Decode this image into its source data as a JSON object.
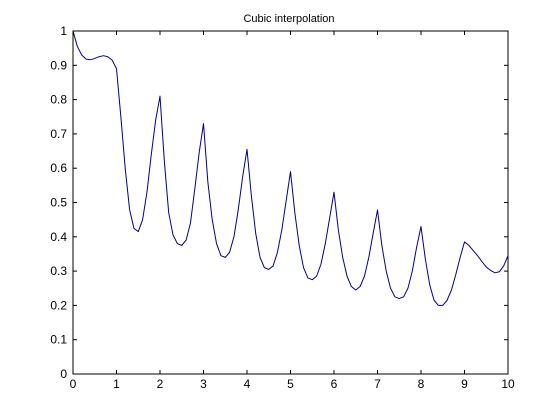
{
  "chart_data": {
    "type": "line",
    "title": "Cubic interpolation",
    "xlabel": "",
    "ylabel": "",
    "xlim": [
      0,
      10
    ],
    "ylim": [
      0,
      1
    ],
    "x_ticks": [
      "0",
      "1",
      "2",
      "3",
      "4",
      "5",
      "6",
      "7",
      "8",
      "9",
      "10"
    ],
    "y_ticks": [
      "0",
      "0.1",
      "0.2",
      "0.3",
      "0.4",
      "0.5",
      "0.6",
      "0.7",
      "0.8",
      "0.9",
      "1"
    ],
    "grid": false,
    "line_color": "#00008f",
    "series": [
      {
        "x": [
          0,
          0.1,
          0.2,
          0.3,
          0.4,
          0.5,
          0.6,
          0.7,
          0.8,
          0.9,
          1.0,
          1.1,
          1.2,
          1.3,
          1.4,
          1.5,
          1.6,
          1.7,
          1.8,
          1.9,
          2.0,
          2.1,
          2.2,
          2.3,
          2.4,
          2.5,
          2.6,
          2.7,
          2.8,
          2.9,
          3.0,
          3.1,
          3.2,
          3.3,
          3.4,
          3.5,
          3.6,
          3.7,
          3.8,
          3.9,
          4.0,
          4.1,
          4.2,
          4.3,
          4.4,
          4.5,
          4.6,
          4.7,
          4.8,
          4.9,
          5.0,
          5.1,
          5.2,
          5.3,
          5.4,
          5.5,
          5.6,
          5.7,
          5.8,
          5.9,
          6.0,
          6.1,
          6.2,
          6.3,
          6.4,
          6.5,
          6.6,
          6.7,
          6.8,
          6.9,
          7.0,
          7.1,
          7.2,
          7.3,
          7.4,
          7.5,
          7.6,
          7.7,
          7.8,
          7.9,
          8.0,
          8.1,
          8.2,
          8.3,
          8.4,
          8.5,
          8.6,
          8.7,
          8.8,
          8.9,
          9.0,
          9.1,
          9.2,
          9.3,
          9.4,
          9.5,
          9.6,
          9.7,
          9.8,
          9.9,
          10.0
        ],
        "y": [
          1.0,
          0.955,
          0.93,
          0.918,
          0.916,
          0.92,
          0.925,
          0.928,
          0.925,
          0.915,
          0.89,
          0.75,
          0.6,
          0.48,
          0.425,
          0.415,
          0.45,
          0.53,
          0.64,
          0.74,
          0.81,
          0.62,
          0.47,
          0.405,
          0.38,
          0.375,
          0.39,
          0.44,
          0.54,
          0.645,
          0.73,
          0.56,
          0.45,
          0.38,
          0.345,
          0.34,
          0.355,
          0.4,
          0.48,
          0.575,
          0.655,
          0.52,
          0.41,
          0.34,
          0.31,
          0.305,
          0.315,
          0.355,
          0.42,
          0.505,
          0.59,
          0.47,
          0.375,
          0.31,
          0.28,
          0.275,
          0.285,
          0.32,
          0.38,
          0.455,
          0.53,
          0.42,
          0.34,
          0.285,
          0.255,
          0.245,
          0.255,
          0.285,
          0.34,
          0.41,
          0.478,
          0.375,
          0.3,
          0.25,
          0.225,
          0.22,
          0.225,
          0.25,
          0.3,
          0.37,
          0.43,
          0.335,
          0.26,
          0.215,
          0.2,
          0.2,
          0.215,
          0.245,
          0.29,
          0.34,
          0.385,
          0.375,
          0.36,
          0.345,
          0.328,
          0.312,
          0.302,
          0.295,
          0.298,
          0.315,
          0.345
        ]
      }
    ]
  }
}
